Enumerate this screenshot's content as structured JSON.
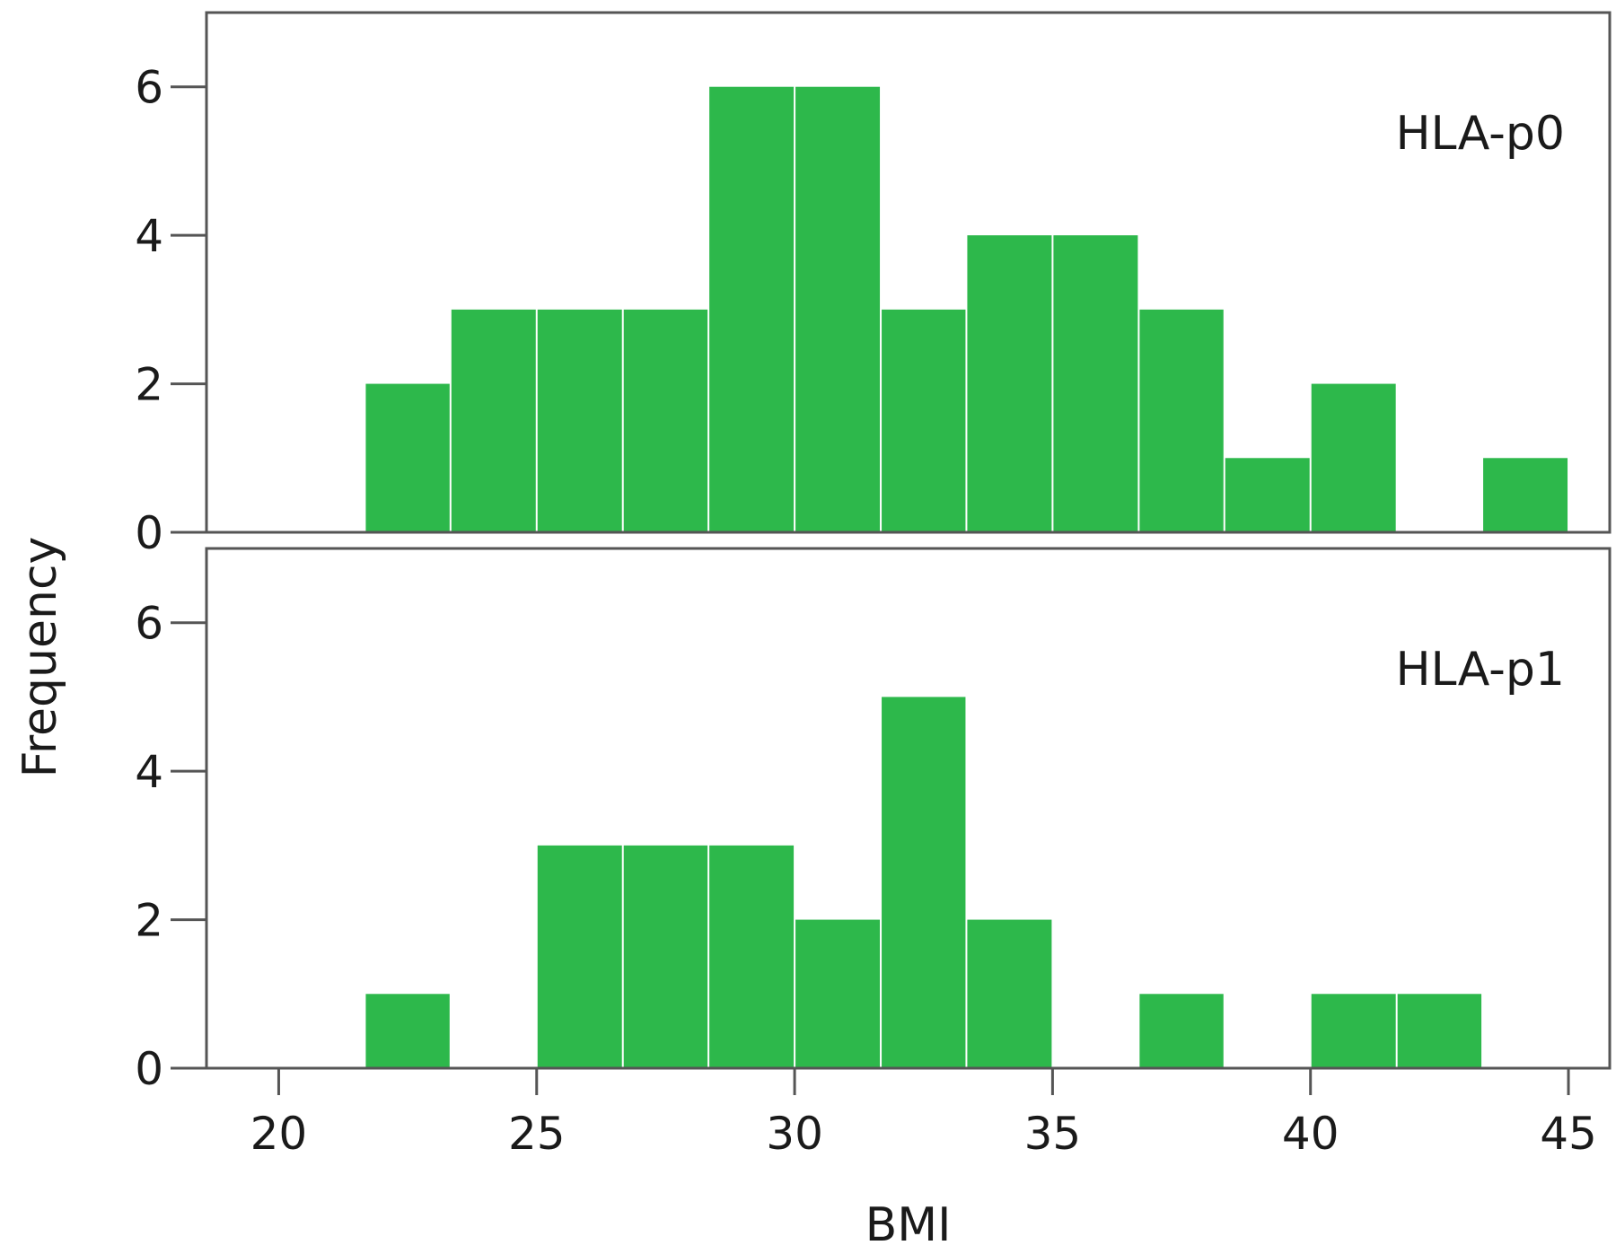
{
  "chart_data": {
    "type": "bar",
    "subtype": "histogram",
    "xlabel": "BMI",
    "ylabel": "Frequency",
    "xlim": [
      18.6,
      45.8
    ],
    "ylim": [
      0,
      7
    ],
    "xticks": [
      20,
      25,
      30,
      35,
      40,
      45
    ],
    "yticks": [
      0,
      2,
      4,
      6
    ],
    "bin_edges": [
      21.67,
      23.33,
      25.0,
      26.67,
      28.33,
      30.0,
      31.67,
      33.33,
      35.0,
      36.67,
      38.33,
      40.0,
      41.67,
      43.33,
      45.0
    ],
    "bar_color": "#2db84b",
    "grid": false,
    "panels": [
      {
        "label": "HLA-p0",
        "values": [
          2,
          3,
          3,
          3,
          6,
          6,
          3,
          4,
          4,
          3,
          1,
          2,
          0,
          1
        ]
      },
      {
        "label": "HLA-p1",
        "values": [
          1,
          0,
          3,
          3,
          3,
          2,
          5,
          2,
          0,
          1,
          0,
          1,
          1,
          0
        ]
      }
    ]
  }
}
